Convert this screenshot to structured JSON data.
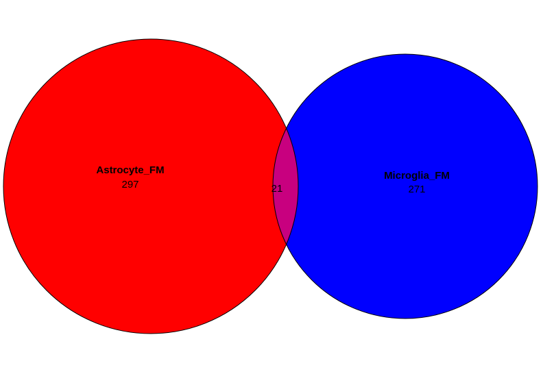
{
  "venn": {
    "sets": [
      {
        "name": "Astrocyte_FM",
        "count": "297",
        "color": "#ff0000"
      },
      {
        "name": "Microglia_FM",
        "count": "271",
        "color": "#0000ff"
      }
    ],
    "intersection": {
      "count": "21",
      "color": "#c8007f"
    },
    "outline_color": "#000000"
  }
}
